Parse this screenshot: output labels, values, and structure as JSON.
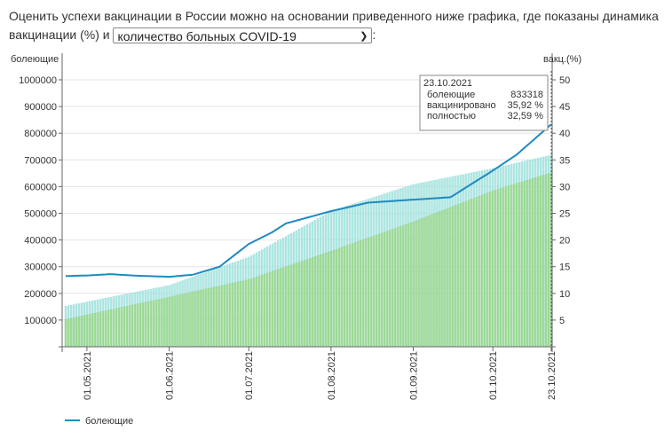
{
  "intro": {
    "text_before": "Оценить успехи вакцинации в России можно на основании приведенного ниже графика, где показаны динамика вакцинации (%) и ",
    "select_value": "количество больных COVID-19",
    "text_after": ":"
  },
  "chart_data": {
    "type": "bar+line",
    "left_axis_label": "болеющие",
    "right_axis_label": "вакц.(%)",
    "left_ylim": [
      0,
      1000000
    ],
    "right_ylim": [
      0,
      50
    ],
    "left_ticks": [
      "100000",
      "200000",
      "300000",
      "400000",
      "500000",
      "600000",
      "700000",
      "800000",
      "900000",
      "1000000"
    ],
    "right_ticks": [
      "5",
      "10",
      "15",
      "20",
      "25",
      "30",
      "35",
      "40",
      "45",
      "50"
    ],
    "x_start": "2021-04-23",
    "x_end": "2021-10-23",
    "x_ticks": [
      {
        "date": "2021-05-01",
        "label": "01.05.2021"
      },
      {
        "date": "2021-06-01",
        "label": "01.06.2021"
      },
      {
        "date": "2021-07-01",
        "label": "01.07.2021"
      },
      {
        "date": "2021-08-01",
        "label": "01.08.2021"
      },
      {
        "date": "2021-09-01",
        "label": "01.09.2021"
      },
      {
        "date": "2021-10-01",
        "label": "01.10.2021"
      },
      {
        "date": "2021-10-23",
        "label": "23.10.2021"
      }
    ],
    "series": [
      {
        "name": "болеющие",
        "type": "line",
        "axis": "left",
        "color": "#1f8ac0",
        "points": [
          [
            "2021-04-23",
            265000
          ],
          [
            "2021-05-01",
            267000
          ],
          [
            "2021-05-10",
            272000
          ],
          [
            "2021-05-20",
            266000
          ],
          [
            "2021-06-01",
            262000
          ],
          [
            "2021-06-10",
            270000
          ],
          [
            "2021-06-20",
            300000
          ],
          [
            "2021-07-01",
            385000
          ],
          [
            "2021-07-10",
            430000
          ],
          [
            "2021-07-15",
            462000
          ],
          [
            "2021-08-01",
            508000
          ],
          [
            "2021-08-15",
            540000
          ],
          [
            "2021-09-01",
            551000
          ],
          [
            "2021-09-15",
            560000
          ],
          [
            "2021-10-01",
            660000
          ],
          [
            "2021-10-10",
            720000
          ],
          [
            "2021-10-23",
            833318
          ]
        ]
      },
      {
        "name": "вакцинировано",
        "type": "bar",
        "axis": "right",
        "color": "#aee8e4",
        "points": [
          [
            "2021-04-23",
            7.6
          ],
          [
            "2021-06-01",
            11.5
          ],
          [
            "2021-07-01",
            16.8
          ],
          [
            "2021-08-01",
            25.4
          ],
          [
            "2021-09-01",
            30.4
          ],
          [
            "2021-10-01",
            33.4
          ],
          [
            "2021-10-23",
            35.92
          ]
        ]
      },
      {
        "name": "полностью",
        "type": "bar",
        "axis": "right",
        "color": "#a3de9a",
        "points": [
          [
            "2021-04-23",
            5.1
          ],
          [
            "2021-06-01",
            9.3
          ],
          [
            "2021-07-01",
            12.6
          ],
          [
            "2021-08-01",
            17.9
          ],
          [
            "2021-09-01",
            23.4
          ],
          [
            "2021-10-01",
            29.2
          ],
          [
            "2021-10-23",
            32.59
          ]
        ]
      }
    ],
    "tooltip": {
      "date": "23.10.2021",
      "rows": [
        {
          "label": "болеющие",
          "value": "833318"
        },
        {
          "label": "вакцинировано",
          "value": "35,92 %"
        },
        {
          "label": "полностью",
          "value": "32,59 %"
        }
      ]
    },
    "legend": [
      {
        "label": "болеющие",
        "color": "#1f8ac0"
      }
    ]
  }
}
